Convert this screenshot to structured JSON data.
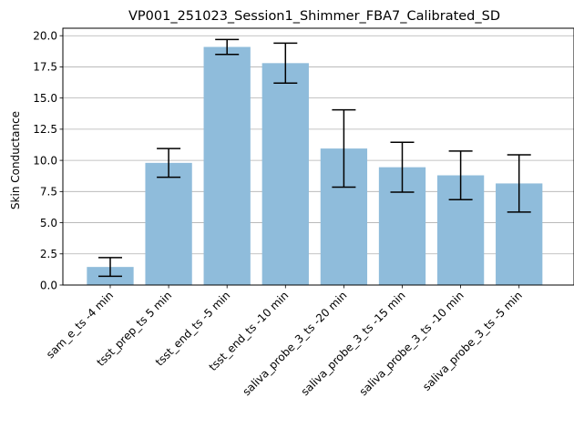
{
  "chart_data": {
    "type": "bar",
    "title": "VP001_251023_Session1_Shimmer_FBA7_Calibrated_SD",
    "xlabel": "",
    "ylabel": "Skin Conductance",
    "categories": [
      "sam_e_ts -4 min",
      "tsst_prep_ts 5 min",
      "tsst_end_ts -5 min",
      "tsst_end_ts -10 min",
      "saliva_probe_3_ts -20 min",
      "saliva_probe_3_ts -15 min",
      "saliva_probe_3_ts -10 min",
      "saliva_probe_3_ts -5 min"
    ],
    "values": [
      1.45,
      9.8,
      19.1,
      17.8,
      10.95,
      9.45,
      8.8,
      8.15
    ],
    "error": [
      0.75,
      1.15,
      0.6,
      1.6,
      3.1,
      2.0,
      1.95,
      2.3
    ],
    "ylim": [
      0,
      20.6
    ],
    "yticks": [
      "0.0",
      "2.5",
      "5.0",
      "7.5",
      "10.0",
      "12.5",
      "15.0",
      "17.5",
      "20.0"
    ],
    "grid": "y",
    "colors": {
      "bar": "#8fbcdb",
      "error": "#000000",
      "grid": "#b0b0b0",
      "axis": "#000000"
    }
  }
}
